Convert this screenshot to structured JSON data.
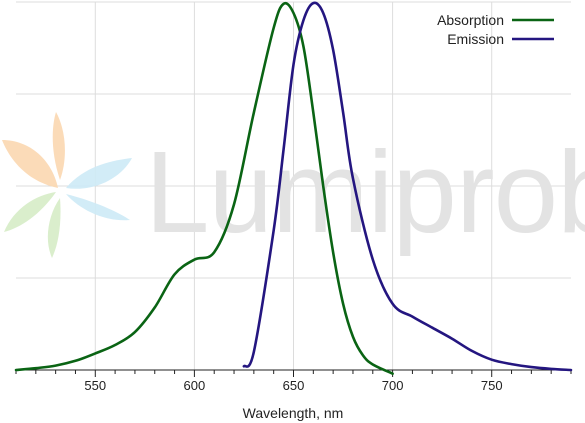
{
  "watermark": {
    "text": "Lumiprobe",
    "logo_colors": [
      "#fbd7b0",
      "#cdeaf6",
      "#d6ecc6"
    ]
  },
  "chart_data": {
    "type": "line",
    "xlabel": "Wavelength, nm",
    "ylabel": "",
    "xlim": [
      510,
      790
    ],
    "ylim": [
      0,
      1
    ],
    "x_ticks": [
      550,
      600,
      650,
      700,
      750
    ],
    "grid": "vertical and horizontal gridlines",
    "legend_position": "top-right",
    "series": [
      {
        "name": "Absorption",
        "color": "#0a6414",
        "points": [
          [
            510,
            0.0
          ],
          [
            520,
            0.005
          ],
          [
            530,
            0.012
          ],
          [
            540,
            0.025
          ],
          [
            550,
            0.045
          ],
          [
            560,
            0.068
          ],
          [
            570,
            0.103
          ],
          [
            580,
            0.17
          ],
          [
            590,
            0.26
          ],
          [
            600,
            0.3
          ],
          [
            610,
            0.32
          ],
          [
            620,
            0.45
          ],
          [
            630,
            0.7
          ],
          [
            640,
            0.93
          ],
          [
            645,
            0.995
          ],
          [
            650,
            0.97
          ],
          [
            655,
            0.88
          ],
          [
            660,
            0.7
          ],
          [
            665,
            0.5
          ],
          [
            670,
            0.32
          ],
          [
            675,
            0.18
          ],
          [
            680,
            0.09
          ],
          [
            685,
            0.04
          ],
          [
            690,
            0.015
          ],
          [
            700,
            -0.01
          ]
        ]
      },
      {
        "name": "Emission",
        "color": "#241680",
        "points": [
          [
            625,
            0.01
          ],
          [
            630,
            0.05
          ],
          [
            640,
            0.38
          ],
          [
            645,
            0.6
          ],
          [
            650,
            0.83
          ],
          [
            655,
            0.95
          ],
          [
            660,
            0.997
          ],
          [
            665,
            0.97
          ],
          [
            670,
            0.87
          ],
          [
            675,
            0.7
          ],
          [
            680,
            0.52
          ],
          [
            690,
            0.3
          ],
          [
            700,
            0.18
          ],
          [
            710,
            0.145
          ],
          [
            720,
            0.115
          ],
          [
            730,
            0.085
          ],
          [
            740,
            0.052
          ],
          [
            750,
            0.028
          ],
          [
            760,
            0.016
          ],
          [
            770,
            0.008
          ],
          [
            780,
            0.003
          ],
          [
            790,
            0.0
          ]
        ]
      }
    ]
  }
}
